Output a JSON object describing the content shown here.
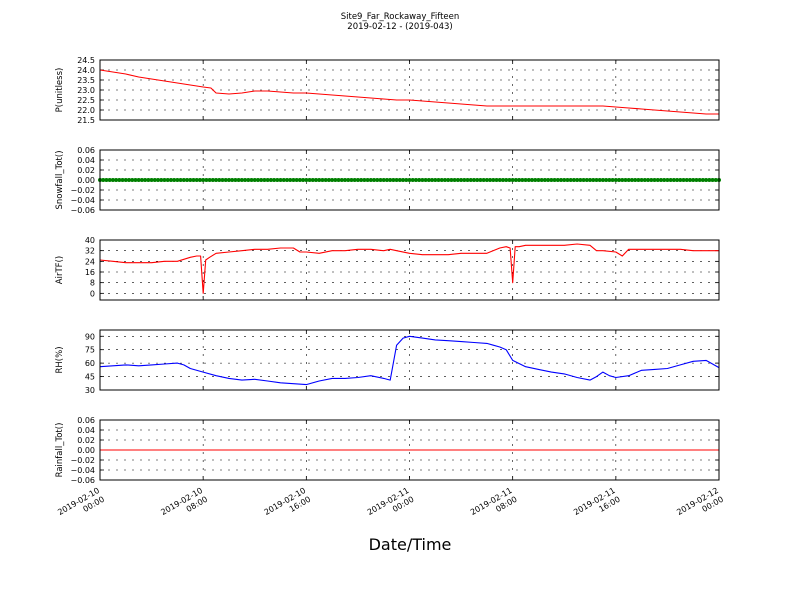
{
  "chart_data": {
    "type": "line",
    "title": "Site9_Far_Rockaway_Fifteen",
    "subtitle": "2019-02-12 - (2019-043)",
    "xlabel": "Date/Time",
    "x_ticks": [
      "2019-02-10\n00:00",
      "2019-02-10\n08:00",
      "2019-02-10\n16:00",
      "2019-02-11\n00:00",
      "2019-02-11\n08:00",
      "2019-02-11\n16:00",
      "2019-02-12\n00:00"
    ],
    "x_unit": "hours since 2019-02-10 00:00",
    "xlim": [
      0,
      48
    ],
    "grid": true,
    "panels": [
      {
        "ylabel": "P(unitless)",
        "ylim": [
          21.5,
          24.5
        ],
        "yticks": [
          "21.5",
          "22.0",
          "22.5",
          "23.0",
          "23.5",
          "24.0",
          "24.5"
        ],
        "color": "#ff0000",
        "x": [
          0,
          1,
          2,
          3,
          4,
          5,
          6,
          7,
          8,
          8.6,
          9,
          10,
          11,
          12,
          13,
          14,
          15,
          16,
          17,
          18,
          19,
          20,
          21,
          22,
          23,
          24,
          25,
          26,
          27,
          28,
          29,
          30,
          31,
          32,
          33,
          34,
          35,
          36,
          37,
          38,
          39,
          40,
          41,
          42,
          43,
          44,
          45,
          46,
          47,
          48
        ],
        "values": [
          24.0,
          23.9,
          23.8,
          23.65,
          23.55,
          23.45,
          23.35,
          23.25,
          23.15,
          23.1,
          22.85,
          22.8,
          22.85,
          22.95,
          22.95,
          22.9,
          22.85,
          22.85,
          22.8,
          22.75,
          22.7,
          22.65,
          22.6,
          22.55,
          22.5,
          22.5,
          22.45,
          22.4,
          22.35,
          22.3,
          22.25,
          22.2,
          22.2,
          22.2,
          22.2,
          22.2,
          22.2,
          22.2,
          22.2,
          22.2,
          22.2,
          22.15,
          22.1,
          22.05,
          22.0,
          21.95,
          21.9,
          21.85,
          21.8,
          21.8
        ]
      },
      {
        "ylabel": "Snowfall_Tot()",
        "ylim": [
          -0.06,
          0.06
        ],
        "yticks": [
          "0.06",
          "0.04",
          "0.02",
          "0.00",
          "−0.02",
          "−0.04",
          "−0.06"
        ],
        "color": "#008000",
        "style": "markers",
        "constant": 0.0
      },
      {
        "ylabel": "AirTF()",
        "ylim": [
          -5,
          40
        ],
        "yticks": [
          "0",
          "8",
          "16",
          "24",
          "32",
          "40"
        ],
        "color": "#ff0000",
        "x": [
          0,
          1,
          2,
          3,
          4,
          5,
          6,
          7,
          7.5,
          7.8,
          8.0,
          8.2,
          8.5,
          9,
          10,
          11,
          12,
          13,
          14,
          15,
          15.5,
          16,
          17,
          18,
          19,
          20,
          21,
          22,
          22.5,
          23,
          24,
          25,
          26,
          27,
          28,
          29,
          30,
          31,
          31.5,
          31.8,
          32.0,
          32.2,
          32.5,
          33,
          34,
          35,
          36,
          37,
          38,
          38.5,
          39,
          40,
          40.5,
          41,
          42,
          43,
          44,
          45,
          46,
          47,
          48
        ],
        "values": [
          25,
          24,
          23,
          23,
          23,
          24,
          24,
          27,
          28,
          28,
          0,
          25,
          27,
          30,
          31,
          32,
          33,
          33,
          34,
          34,
          31,
          31,
          30,
          32,
          32,
          33,
          33,
          32,
          33,
          32,
          30,
          29,
          29,
          29,
          30,
          30,
          30,
          34,
          35,
          34,
          8,
          35,
          35,
          36,
          36,
          36,
          36,
          37,
          36,
          32,
          32,
          31,
          28,
          33,
          33,
          33,
          33,
          33,
          32,
          32,
          32
        ]
      },
      {
        "ylabel": "RH(%)",
        "ylim": [
          30,
          97
        ],
        "yticks": [
          "30",
          "45",
          "60",
          "75",
          "90"
        ],
        "color": "#0000ff",
        "x": [
          0,
          1,
          2,
          3,
          4,
          5,
          6,
          6.5,
          7,
          8,
          9,
          10,
          11,
          12,
          13,
          14,
          15,
          16,
          17,
          18,
          19,
          20,
          21,
          22,
          22.5,
          23,
          23.5,
          24,
          25,
          26,
          27,
          28,
          29,
          30,
          30.5,
          31,
          31.5,
          32,
          33,
          34,
          35,
          36,
          37,
          38,
          38.5,
          39,
          39.5,
          40,
          41,
          42,
          43,
          44,
          45,
          46,
          47,
          48
        ],
        "values": [
          56,
          57,
          58,
          57,
          58,
          59,
          60,
          58,
          54,
          50,
          46,
          43,
          41,
          42,
          40,
          38,
          37,
          36,
          40,
          43,
          43,
          44,
          46,
          43,
          41,
          80,
          88,
          90,
          88,
          86,
          85,
          84,
          83,
          82,
          80,
          78,
          75,
          63,
          56,
          53,
          50,
          48,
          44,
          41,
          45,
          50,
          46,
          44,
          46,
          52,
          53,
          54,
          58,
          62,
          63,
          55
        ]
      },
      {
        "ylabel": "Rainfall_Tot()",
        "ylim": [
          -0.06,
          0.06
        ],
        "yticks": [
          "0.06",
          "0.04",
          "0.02",
          "0.00",
          "−0.02",
          "−0.04",
          "−0.06"
        ],
        "color": "#ff0000",
        "constant": 0.0
      }
    ]
  }
}
